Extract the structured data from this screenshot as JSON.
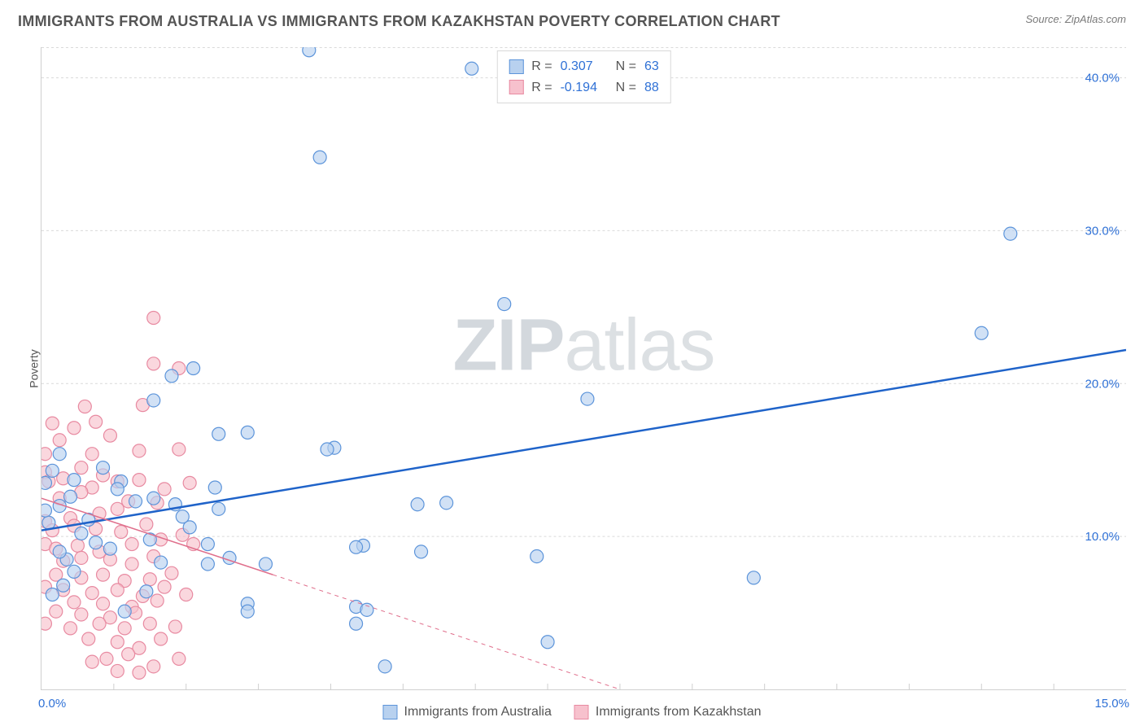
{
  "title": "IMMIGRANTS FROM AUSTRALIA VS IMMIGRANTS FROM KAZAKHSTAN POVERTY CORRELATION CHART",
  "source_label": "Source: ZipAtlas.com",
  "ylabel": "Poverty",
  "watermark": {
    "bold": "ZIP",
    "light": "atlas"
  },
  "colors": {
    "series_a_fill": "#b8d1ef",
    "series_a_stroke": "#5c94da",
    "series_a_line": "#1f63c9",
    "series_b_fill": "#f7c1cd",
    "series_b_stroke": "#e88aa1",
    "series_b_line": "#e06f8c",
    "grid": "#d9d9d9",
    "axis": "#cfcfcf",
    "tick_text": "#2f71d6",
    "text": "#555555",
    "background": "#ffffff"
  },
  "marker_radius": 8,
  "marker_opacity": 0.65,
  "line_width_a": 2.5,
  "line_width_b": 1.5,
  "axes": {
    "xlim": [
      0,
      15
    ],
    "ylim": [
      0,
      42
    ],
    "x_left_label": "0.0%",
    "x_right_label": "15.0%",
    "y_ticks": [
      10,
      20,
      30,
      40
    ],
    "y_tick_labels": [
      "10.0%",
      "20.0%",
      "30.0%",
      "40.0%"
    ],
    "x_tick_positions": [
      1,
      2,
      3,
      4,
      5,
      6,
      7,
      8,
      9,
      10,
      11,
      12,
      13,
      14
    ]
  },
  "stats_legend": [
    {
      "swatch_fill": "#b8d1ef",
      "swatch_stroke": "#5c94da",
      "r_label": "R =",
      "r": "0.307",
      "n_label": "N =",
      "n": "63"
    },
    {
      "swatch_fill": "#f7c1cd",
      "swatch_stroke": "#e88aa1",
      "r_label": "R =",
      "r": "-0.194",
      "n_label": "N =",
      "n": "88"
    }
  ],
  "bottom_legend": [
    {
      "swatch_fill": "#b8d1ef",
      "swatch_stroke": "#5c94da",
      "label": "Immigrants from Australia"
    },
    {
      "swatch_fill": "#f7c1cd",
      "swatch_stroke": "#e88aa1",
      "label": "Immigrants from Kazakhstan"
    }
  ],
  "trend_lines": {
    "a": {
      "x1": 0,
      "y1": 10.4,
      "x2": 15,
      "y2": 22.2,
      "dash": false
    },
    "b": {
      "x1": 0,
      "y1": 12.5,
      "x2": 8.0,
      "y2": 0.0,
      "dash_after_x": 3.2
    }
  },
  "series_a": [
    [
      3.7,
      41.8
    ],
    [
      5.95,
      40.6
    ],
    [
      3.85,
      34.8
    ],
    [
      13.4,
      29.8
    ],
    [
      6.4,
      25.2
    ],
    [
      13.0,
      23.3
    ],
    [
      7.55,
      19.0
    ],
    [
      1.8,
      20.5
    ],
    [
      2.1,
      21.0
    ],
    [
      1.55,
      18.9
    ],
    [
      1.1,
      13.6
    ],
    [
      2.85,
      16.8
    ],
    [
      2.45,
      16.7
    ],
    [
      4.05,
      15.8
    ],
    [
      3.95,
      15.7
    ],
    [
      5.2,
      12.1
    ],
    [
      5.6,
      12.2
    ],
    [
      2.4,
      13.2
    ],
    [
      0.15,
      14.3
    ],
    [
      0.45,
      13.7
    ],
    [
      0.25,
      12.0
    ],
    [
      0.65,
      11.1
    ],
    [
      1.3,
      12.3
    ],
    [
      4.45,
      9.4
    ],
    [
      4.35,
      9.3
    ],
    [
      2.3,
      9.5
    ],
    [
      2.6,
      8.6
    ],
    [
      2.3,
      8.2
    ],
    [
      3.1,
      8.2
    ],
    [
      2.85,
      5.6
    ],
    [
      2.85,
      5.1
    ],
    [
      4.35,
      5.4
    ],
    [
      4.5,
      5.2
    ],
    [
      4.35,
      4.3
    ],
    [
      5.25,
      9.0
    ],
    [
      6.85,
      8.7
    ],
    [
      7.0,
      3.1
    ],
    [
      4.75,
      1.5
    ],
    [
      9.85,
      7.3
    ],
    [
      0.55,
      10.2
    ],
    [
      0.95,
      9.2
    ],
    [
      0.35,
      8.5
    ],
    [
      1.65,
      8.3
    ],
    [
      1.45,
      6.4
    ],
    [
      1.15,
      5.1
    ],
    [
      0.15,
      6.2
    ],
    [
      0.05,
      13.5
    ],
    [
      0.25,
      15.4
    ],
    [
      0.85,
      14.5
    ],
    [
      0.1,
      10.9
    ],
    [
      0.4,
      12.6
    ],
    [
      1.05,
      13.1
    ],
    [
      1.55,
      12.5
    ],
    [
      1.85,
      12.1
    ],
    [
      2.45,
      11.8
    ],
    [
      2.05,
      10.6
    ],
    [
      0.75,
      9.6
    ],
    [
      1.5,
      9.8
    ],
    [
      1.95,
      11.3
    ],
    [
      0.45,
      7.7
    ],
    [
      0.25,
      9.0
    ],
    [
      0.3,
      6.8
    ],
    [
      0.05,
      11.7
    ]
  ],
  "series_b": [
    [
      1.55,
      24.3
    ],
    [
      1.55,
      21.3
    ],
    [
      1.9,
      21.0
    ],
    [
      0.6,
      18.5
    ],
    [
      1.4,
      18.6
    ],
    [
      0.75,
      17.5
    ],
    [
      0.15,
      17.4
    ],
    [
      0.45,
      17.1
    ],
    [
      0.25,
      16.3
    ],
    [
      0.95,
      16.6
    ],
    [
      0.7,
      15.4
    ],
    [
      1.35,
      15.6
    ],
    [
      1.9,
      15.7
    ],
    [
      0.05,
      15.4
    ],
    [
      0.05,
      14.2
    ],
    [
      0.1,
      13.6
    ],
    [
      0.3,
      13.8
    ],
    [
      0.55,
      14.5
    ],
    [
      0.85,
      14.0
    ],
    [
      0.7,
      13.2
    ],
    [
      1.05,
      13.6
    ],
    [
      1.35,
      13.7
    ],
    [
      1.7,
      13.1
    ],
    [
      1.6,
      12.2
    ],
    [
      1.2,
      12.3
    ],
    [
      1.05,
      11.8
    ],
    [
      0.8,
      11.5
    ],
    [
      0.25,
      12.5
    ],
    [
      0.55,
      12.9
    ],
    [
      0.4,
      11.2
    ],
    [
      0.05,
      11.0
    ],
    [
      0.15,
      10.4
    ],
    [
      0.45,
      10.7
    ],
    [
      0.75,
      10.5
    ],
    [
      1.1,
      10.3
    ],
    [
      1.45,
      10.8
    ],
    [
      1.25,
      9.5
    ],
    [
      1.65,
      9.8
    ],
    [
      1.95,
      10.1
    ],
    [
      2.05,
      13.5
    ],
    [
      0.05,
      9.5
    ],
    [
      0.2,
      9.2
    ],
    [
      0.5,
      9.4
    ],
    [
      0.8,
      9.0
    ],
    [
      0.3,
      8.4
    ],
    [
      0.55,
      8.6
    ],
    [
      0.95,
      8.5
    ],
    [
      1.25,
      8.2
    ],
    [
      1.55,
      8.7
    ],
    [
      0.55,
      7.3
    ],
    [
      0.85,
      7.5
    ],
    [
      0.2,
      7.5
    ],
    [
      1.15,
      7.1
    ],
    [
      1.5,
      7.2
    ],
    [
      1.8,
      7.6
    ],
    [
      0.05,
      6.7
    ],
    [
      0.3,
      6.5
    ],
    [
      0.7,
      6.3
    ],
    [
      1.05,
      6.5
    ],
    [
      1.4,
      6.1
    ],
    [
      1.7,
      6.7
    ],
    [
      2.0,
      6.2
    ],
    [
      0.45,
      5.7
    ],
    [
      0.85,
      5.6
    ],
    [
      1.25,
      5.4
    ],
    [
      1.6,
      5.8
    ],
    [
      0.2,
      5.1
    ],
    [
      0.55,
      4.9
    ],
    [
      0.95,
      4.7
    ],
    [
      1.3,
      5.0
    ],
    [
      0.05,
      4.3
    ],
    [
      0.4,
      4.0
    ],
    [
      0.8,
      4.3
    ],
    [
      1.15,
      4.0
    ],
    [
      1.5,
      4.3
    ],
    [
      1.85,
      4.1
    ],
    [
      0.65,
      3.3
    ],
    [
      1.05,
      3.1
    ],
    [
      1.35,
      2.7
    ],
    [
      1.65,
      3.3
    ],
    [
      0.9,
      2.0
    ],
    [
      1.2,
      2.3
    ],
    [
      1.55,
      1.5
    ],
    [
      1.05,
      1.2
    ],
    [
      1.35,
      1.1
    ],
    [
      0.7,
      1.8
    ],
    [
      1.9,
      2.0
    ],
    [
      2.1,
      9.5
    ]
  ]
}
